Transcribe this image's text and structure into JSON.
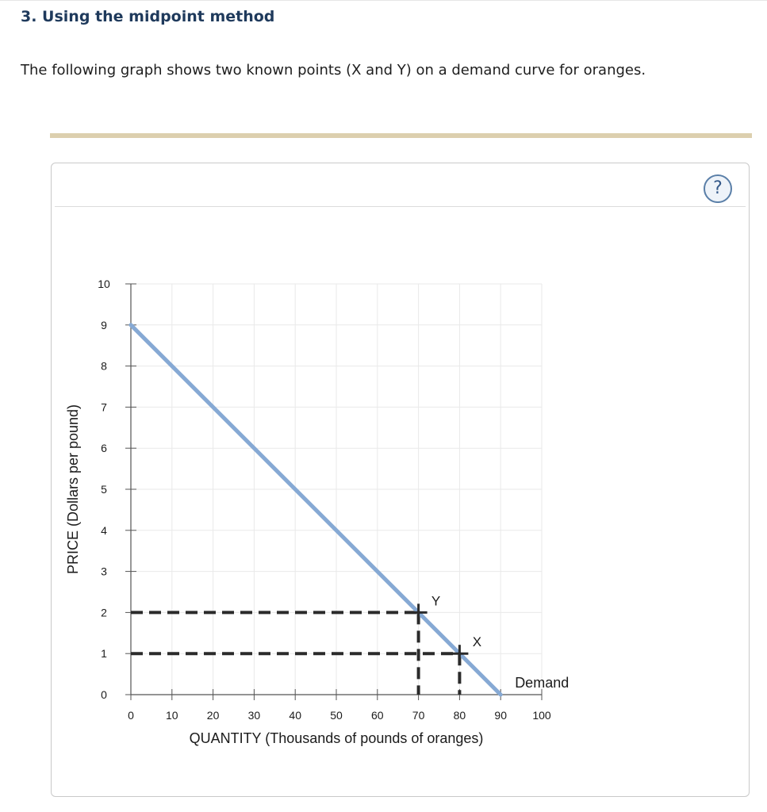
{
  "page": {
    "heading": "3. Using the midpoint method",
    "intro": "The following graph shows two known points (X and Y) on a demand curve for oranges.",
    "help_label": "?"
  },
  "colors": {
    "heading": "#1f3a5c",
    "accent_bar": "#dccfae",
    "demand_line": "#86a9d4",
    "guide_lines": "#2b2b2b",
    "grid": "#e9e9e9"
  },
  "icons": {
    "help": "question-circle-icon"
  },
  "chart_data": {
    "type": "line",
    "xlabel": "QUANTITY (Thousands of pounds of oranges)",
    "ylabel": "PRICE (Dollars per pound)",
    "xlim": [
      0,
      100
    ],
    "ylim": [
      0,
      10
    ],
    "xticks": [
      0,
      10,
      20,
      30,
      40,
      50,
      60,
      70,
      80,
      90,
      100
    ],
    "yticks": [
      0,
      1,
      2,
      3,
      4,
      5,
      6,
      7,
      8,
      9,
      10
    ],
    "grid": true,
    "series": [
      {
        "name": "Demand",
        "x": [
          0,
          90
        ],
        "y": [
          9,
          0
        ]
      }
    ],
    "points": [
      {
        "label": "Y",
        "x": 70,
        "y": 2
      },
      {
        "label": "X",
        "x": 80,
        "y": 1
      }
    ]
  }
}
